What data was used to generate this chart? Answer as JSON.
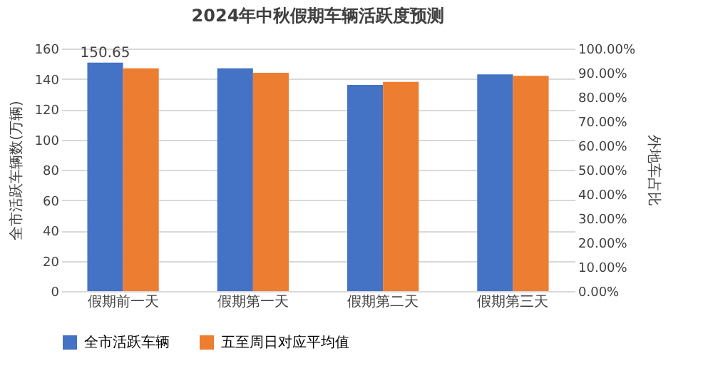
{
  "chart_data": {
    "type": "bar",
    "title": "2024年中秋假期车辆活跃度预测",
    "ylabel": "全市活跃车辆数(万辆)",
    "y2label": "外地车占比",
    "categories": [
      "假期前一天",
      "假期第一天",
      "假期第二天",
      "假期第三天"
    ],
    "series": [
      {
        "name": "全市活跃车辆",
        "color": "#4472c4",
        "values": [
          150.65,
          147,
          136,
          143
        ],
        "value_labels": [
          "150.65",
          null,
          null,
          null
        ]
      },
      {
        "name": "五至周日对应平均值",
        "color": "#ed7d31",
        "values": [
          147,
          144,
          138,
          142
        ]
      }
    ],
    "ylim": [
      0,
      160
    ],
    "yticks": [
      0,
      20,
      40,
      60,
      80,
      100,
      120,
      140,
      160
    ],
    "y2lim": [
      0,
      100
    ],
    "y2ticks": [
      {
        "value": 0,
        "label": "0.00%"
      },
      {
        "value": 10,
        "label": "10.00%"
      },
      {
        "value": 20,
        "label": "20.00%"
      },
      {
        "value": 30,
        "label": "30.00%"
      },
      {
        "value": 40,
        "label": "40.00%"
      },
      {
        "value": 50,
        "label": "50.00%"
      },
      {
        "value": 60,
        "label": "60.00%"
      },
      {
        "value": 70,
        "label": "70.00%"
      },
      {
        "value": 80,
        "label": "80.00%"
      },
      {
        "value": 90,
        "label": "90.00%"
      },
      {
        "value": 100,
        "label": "100.00%"
      }
    ],
    "grid": "y",
    "legend": "bottom"
  }
}
